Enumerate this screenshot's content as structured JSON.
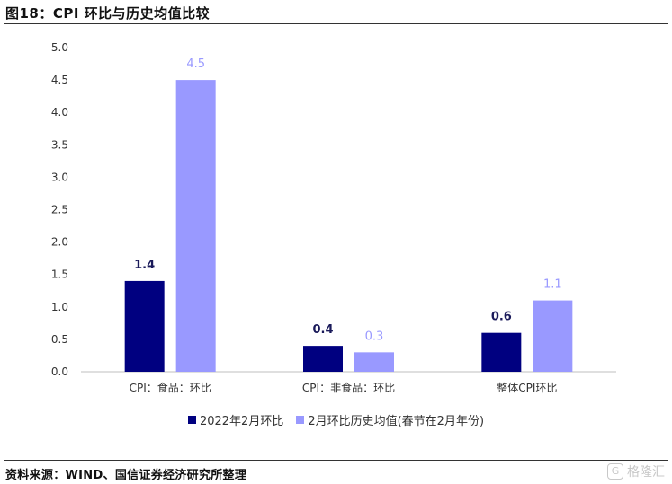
{
  "header": {
    "title": "图18：CPI 环比与历史均值比较"
  },
  "footer": {
    "source": "资料来源：WIND、国信证券经济研究所整理",
    "watermark": "格隆汇",
    "watermark_logo": "G"
  },
  "chart_data": {
    "type": "bar",
    "categories": [
      "CPI：食品：环比",
      "CPI：非食品：环比",
      "整体CPI环比"
    ],
    "series": [
      {
        "name": "2022年2月环比",
        "values": [
          1.4,
          0.4,
          0.6
        ],
        "color": "#000080",
        "label_color": "#1a1a5a"
      },
      {
        "name": "2月环比历史均值(春节在2月年份)",
        "values": [
          4.5,
          0.3,
          1.1
        ],
        "color": "#9999ff",
        "label_color": "#9999ff"
      }
    ],
    "yticks": [
      "0.0",
      "0.5",
      "1.0",
      "1.5",
      "2.0",
      "2.5",
      "3.0",
      "3.5",
      "4.0",
      "4.5",
      "5.0"
    ],
    "ylim": [
      0,
      5
    ],
    "grid": false,
    "legend_position": "bottom-center"
  }
}
